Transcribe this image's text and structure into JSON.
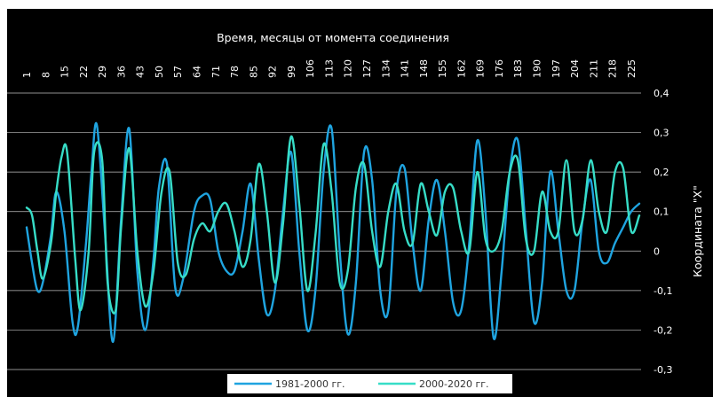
{
  "chart_data": {
    "type": "line",
    "title": "Время, месяцы от момента соединения",
    "xlabel": "Время, месяцы от момента соединения",
    "ylabel": "Координата \"X\"",
    "ylim": [
      -0.3,
      0.4
    ],
    "y_ticks": [
      "0,4",
      "0,3",
      "0,2",
      "0,1",
      "0",
      "-0,1",
      "-0,2",
      "-0,3"
    ],
    "y_tick_values": [
      0.4,
      0.3,
      0.2,
      0.1,
      0,
      -0.1,
      -0.2,
      -0.3
    ],
    "x_tick_labels": [
      "1",
      "8",
      "15",
      "22",
      "29",
      "36",
      "43",
      "50",
      "57",
      "64",
      "71",
      "78",
      "85",
      "92",
      "99",
      "106",
      "113",
      "120",
      "127",
      "134",
      "141",
      "148",
      "155",
      "162",
      "169",
      "176",
      "183",
      "190",
      "197",
      "204",
      "211",
      "218",
      "225"
    ],
    "x_range": [
      1,
      228
    ],
    "x_axis_position": "top",
    "y_axis_position": "right",
    "grid": true,
    "legend_position": "bottom",
    "series": [
      {
        "name": "1981-2000 гг.",
        "color": "#1fa4e0",
        "x": [
          1,
          3,
          5,
          7,
          10,
          12,
          15,
          18,
          20,
          23,
          25,
          27,
          30,
          33,
          36,
          39,
          42,
          45,
          48,
          50,
          53,
          56,
          59,
          63,
          66,
          69,
          72,
          75,
          78,
          81,
          84,
          87,
          90,
          93,
          96,
          99,
          102,
          105,
          108,
          111,
          114,
          117,
          120,
          123,
          126,
          129,
          132,
          135,
          138,
          141,
          144,
          147,
          150,
          153,
          156,
          159,
          162,
          165,
          168,
          171,
          174,
          177,
          180,
          183,
          186,
          189,
          192,
          195,
          198,
          201,
          204,
          207,
          210,
          213,
          216,
          219,
          222,
          225,
          228
        ],
        "values": [
          0.06,
          -0.03,
          -0.1,
          -0.08,
          0.04,
          0.15,
          0.05,
          -0.18,
          -0.19,
          0.02,
          0.2,
          0.32,
          0.05,
          -0.23,
          0.08,
          0.31,
          -0.05,
          -0.2,
          -0.02,
          0.16,
          0.22,
          -0.09,
          -0.07,
          0.1,
          0.14,
          0.13,
          0.0,
          -0.05,
          -0.05,
          0.05,
          0.17,
          -0.02,
          -0.16,
          -0.1,
          0.1,
          0.25,
          0.0,
          -0.2,
          -0.1,
          0.2,
          0.31,
          0.0,
          -0.21,
          -0.08,
          0.25,
          0.18,
          -0.1,
          -0.15,
          0.15,
          0.21,
          0.02,
          -0.1,
          0.08,
          0.18,
          0.05,
          -0.13,
          -0.15,
          0.02,
          0.28,
          0.1,
          -0.22,
          -0.05,
          0.2,
          0.28,
          0.05,
          -0.18,
          -0.08,
          0.2,
          0.05,
          -0.1,
          -0.1,
          0.08,
          0.18,
          0.0,
          -0.03,
          0.02,
          0.06,
          0.1,
          0.12
        ]
      },
      {
        "name": "2000-2020 гг.",
        "color": "#37ddc7",
        "x": [
          1,
          3,
          5,
          7,
          10,
          12,
          14,
          16,
          19,
          21,
          24,
          26,
          29,
          31,
          34,
          36,
          39,
          42,
          45,
          48,
          51,
          54,
          57,
          60,
          63,
          66,
          69,
          72,
          75,
          78,
          81,
          84,
          87,
          90,
          93,
          96,
          99,
          102,
          105,
          108,
          111,
          114,
          117,
          120,
          123,
          126,
          129,
          132,
          135,
          138,
          141,
          144,
          147,
          150,
          153,
          156,
          159,
          162,
          165,
          168,
          171,
          174,
          177,
          180,
          183,
          186,
          189,
          192,
          195,
          198,
          201,
          204,
          207,
          210,
          213,
          216,
          219,
          222,
          225,
          228
        ],
        "values": [
          0.11,
          0.09,
          0.0,
          -0.07,
          0.02,
          0.15,
          0.24,
          0.25,
          -0.02,
          -0.15,
          0.0,
          0.25,
          0.23,
          -0.08,
          -0.15,
          0.06,
          0.26,
          0.0,
          -0.14,
          -0.05,
          0.15,
          0.2,
          -0.03,
          -0.06,
          0.03,
          0.07,
          0.05,
          0.1,
          0.12,
          0.05,
          -0.04,
          0.03,
          0.22,
          0.1,
          -0.08,
          0.07,
          0.29,
          0.12,
          -0.1,
          0.04,
          0.27,
          0.15,
          -0.08,
          -0.05,
          0.16,
          0.22,
          0.05,
          -0.04,
          0.1,
          0.17,
          0.05,
          0.02,
          0.17,
          0.1,
          0.04,
          0.15,
          0.16,
          0.05,
          0.0,
          0.2,
          0.03,
          0.0,
          0.05,
          0.2,
          0.23,
          0.03,
          0.0,
          0.15,
          0.05,
          0.05,
          0.23,
          0.05,
          0.08,
          0.23,
          0.1,
          0.05,
          0.2,
          0.21,
          0.05,
          0.09
        ]
      }
    ]
  }
}
